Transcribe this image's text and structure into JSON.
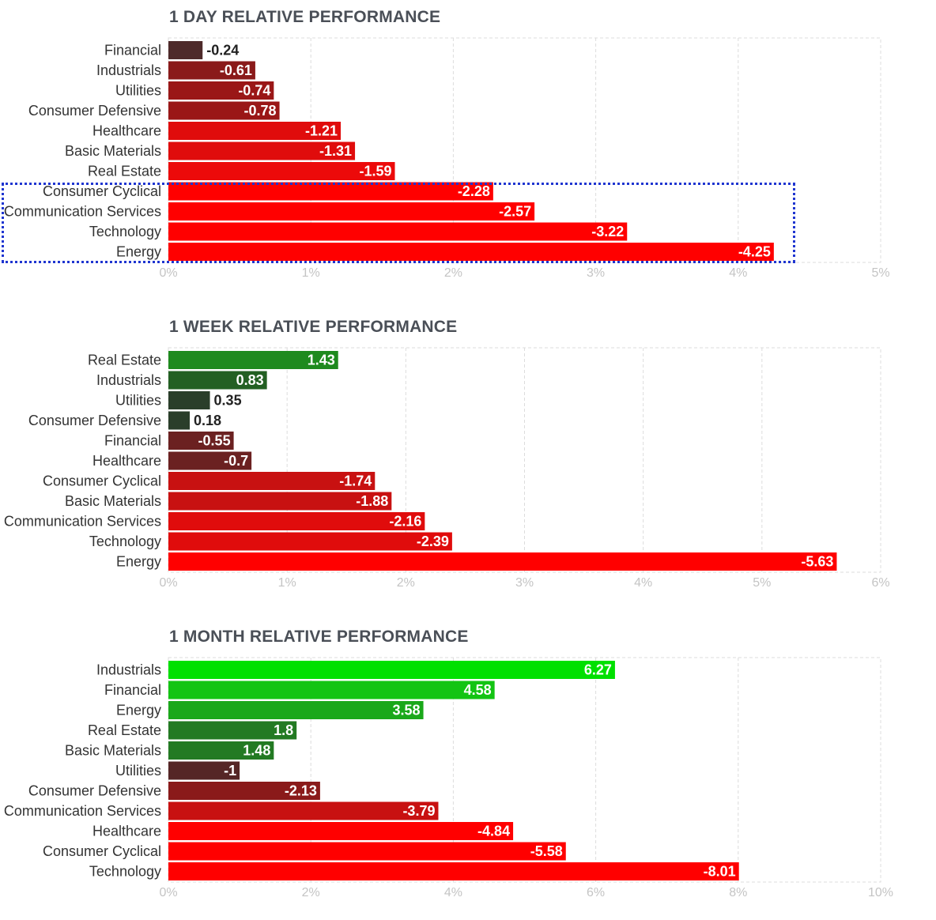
{
  "chart_data": [
    {
      "type": "bar",
      "orientation": "horizontal",
      "title": "1 DAY RELATIVE PERFORMANCE",
      "categories": [
        "Financial",
        "Industrials",
        "Utilities",
        "Consumer Defensive",
        "Healthcare",
        "Basic Materials",
        "Real Estate",
        "Consumer Cyclical",
        "Communication Services",
        "Technology",
        "Energy"
      ],
      "values": [
        -0.24,
        -0.61,
        -0.74,
        -0.78,
        -1.21,
        -1.31,
        -1.59,
        -2.28,
        -2.57,
        -3.22,
        -4.25
      ],
      "value_labels": [
        "-0.24",
        "-0.61",
        "-0.74",
        "-0.78",
        "-1.21",
        "-1.31",
        "-1.59",
        "-2.28",
        "-2.57",
        "-3.22",
        "-4.25"
      ],
      "colors": [
        "#4e2a2a",
        "#8a1a1a",
        "#9a1717",
        "#9a1717",
        "#e00c0c",
        "#e00c0c",
        "#ec0a0a",
        "#ff0000",
        "#ff0000",
        "#ff0000",
        "#ff0000"
      ],
      "xlim": [
        0,
        5
      ],
      "ticks": [
        "0%",
        "1%",
        "2%",
        "3%",
        "4%",
        "5%"
      ],
      "xlabel": "",
      "ylabel": "",
      "grid": true,
      "highlighted": [
        "Consumer Cyclical",
        "Communication Services",
        "Technology",
        "Energy"
      ]
    },
    {
      "type": "bar",
      "orientation": "horizontal",
      "title": "1 WEEK RELATIVE PERFORMANCE",
      "categories": [
        "Real Estate",
        "Industrials",
        "Utilities",
        "Consumer Defensive",
        "Financial",
        "Healthcare",
        "Consumer Cyclical",
        "Basic Materials",
        "Communication Services",
        "Technology",
        "Energy"
      ],
      "values": [
        1.43,
        0.83,
        0.35,
        0.18,
        -0.55,
        -0.7,
        -1.74,
        -1.88,
        -2.16,
        -2.39,
        -5.63
      ],
      "value_labels": [
        "1.43",
        "0.83",
        "0.35",
        "0.18",
        "-0.55",
        "-0.7",
        "-1.74",
        "-1.88",
        "-2.16",
        "-2.39",
        "-5.63"
      ],
      "colors": [
        "#1e8a1e",
        "#236023",
        "#2a3e2a",
        "#2a3e2a",
        "#6b2121",
        "#6b2121",
        "#c81111",
        "#c81111",
        "#e00c0c",
        "#e00c0c",
        "#ff0000"
      ],
      "xlim": [
        0,
        6
      ],
      "ticks": [
        "0%",
        "1%",
        "2%",
        "3%",
        "4%",
        "5%",
        "6%"
      ],
      "xlabel": "",
      "ylabel": "",
      "grid": true
    },
    {
      "type": "bar",
      "orientation": "horizontal",
      "title": "1 MONTH RELATIVE PERFORMANCE",
      "categories": [
        "Industrials",
        "Financial",
        "Energy",
        "Real Estate",
        "Basic Materials",
        "Utilities",
        "Consumer Defensive",
        "Communication Services",
        "Healthcare",
        "Consumer Cyclical",
        "Technology"
      ],
      "values": [
        6.27,
        4.58,
        3.58,
        1.8,
        1.48,
        -1,
        -2.13,
        -3.79,
        -4.84,
        -5.58,
        -8.01
      ],
      "value_labels": [
        "6.27",
        "4.58",
        "3.58",
        "1.8",
        "1.48",
        "-1",
        "-2.13",
        "-3.79",
        "-4.84",
        "-5.58",
        "-8.01"
      ],
      "colors": [
        "#00e000",
        "#13c413",
        "#1aa81a",
        "#237a23",
        "#237a23",
        "#552626",
        "#8a1a1a",
        "#c81111",
        "#ff0000",
        "#ff0000",
        "#ff0000"
      ],
      "xlim": [
        0,
        10
      ],
      "ticks": [
        "0%",
        "2%",
        "4%",
        "6%",
        "8%",
        "10%"
      ],
      "xlabel": "",
      "ylabel": "",
      "grid": true
    }
  ]
}
